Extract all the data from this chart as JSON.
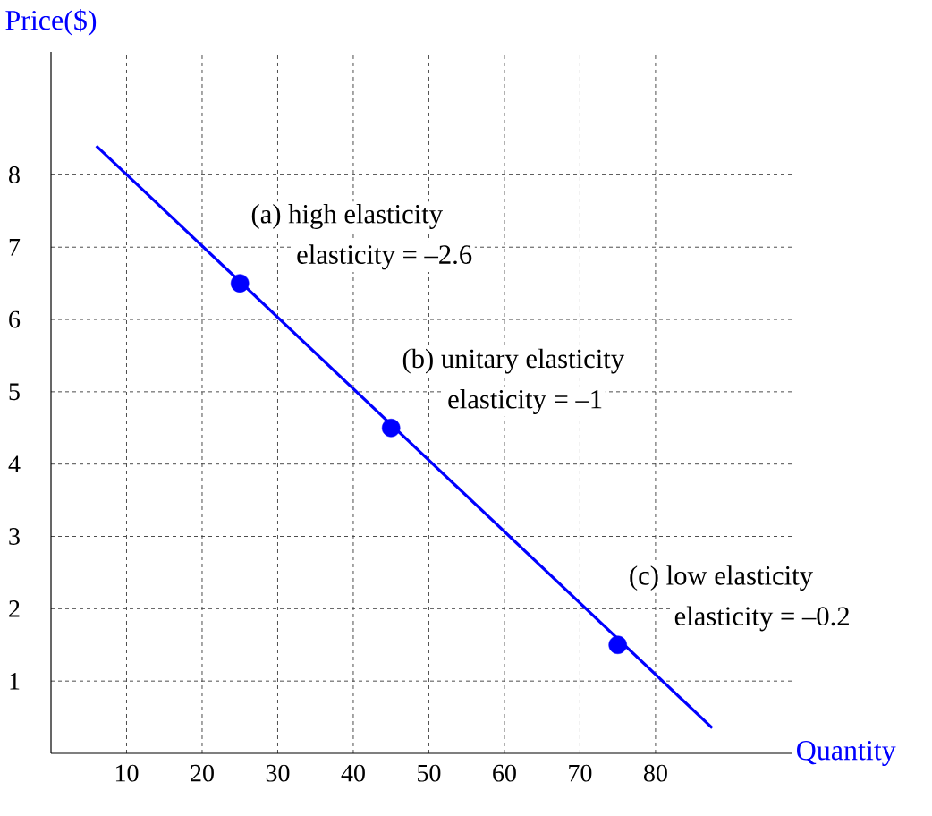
{
  "chart_data": {
    "type": "line",
    "xlabel": "Quantity",
    "ylabel": "Price($)",
    "xlim": [
      0,
      98
    ],
    "ylim": [
      0,
      9.7
    ],
    "xticks": [
      10,
      20,
      30,
      40,
      50,
      60,
      70,
      80
    ],
    "yticks": [
      1,
      2,
      3,
      4,
      5,
      6,
      7,
      8
    ],
    "grid": true,
    "series": [
      {
        "color": "#0000ff",
        "x": [
          6,
          87.5
        ],
        "values": [
          8.4,
          0.35
        ],
        "marker": "none"
      },
      {
        "type": "scatter",
        "color": "#0000ff",
        "x": [
          25,
          45,
          75
        ],
        "values": [
          6.5,
          4.5,
          1.5
        ],
        "marker": "circle"
      }
    ],
    "annotations": [
      "(a) high elasticity",
      "elasticity = –2.6",
      "(b) unitary elasticity",
      "elasticity = –1",
      "(c) low elasticity",
      "elasticity = –0.2"
    ]
  }
}
